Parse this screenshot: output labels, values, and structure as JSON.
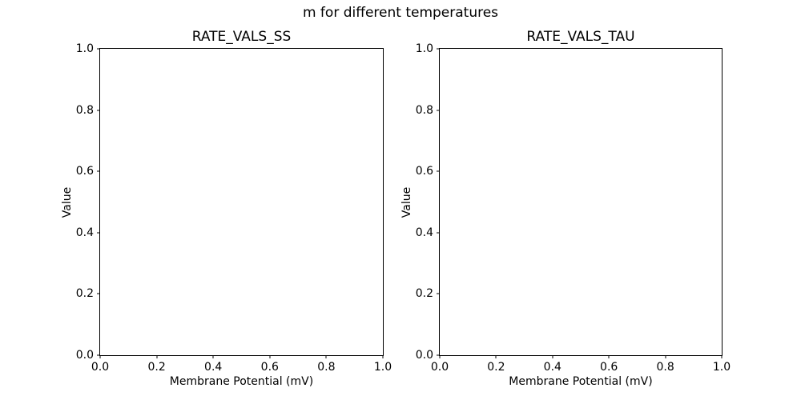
{
  "figure": {
    "suptitle": "m for different temperatures"
  },
  "colors": {
    "background": "#ffffff",
    "text": "#000000",
    "axis": "#000000"
  },
  "chart_data": [
    {
      "type": "line",
      "title": "RATE_VALS_SS",
      "xlabel": "Membrane Potential (mV)",
      "ylabel": "Value",
      "xlim": [
        0.0,
        1.0
      ],
      "ylim": [
        0.0,
        1.0
      ],
      "xticks": [
        "0.0",
        "0.2",
        "0.4",
        "0.6",
        "0.8",
        "1.0"
      ],
      "yticks": [
        "0.0",
        "0.2",
        "0.4",
        "0.6",
        "0.8",
        "1.0"
      ],
      "grid": false,
      "legend": false,
      "series": []
    },
    {
      "type": "line",
      "title": "RATE_VALS_TAU",
      "xlabel": "Membrane Potential (mV)",
      "ylabel": "Value",
      "xlim": [
        0.0,
        1.0
      ],
      "ylim": [
        0.0,
        1.0
      ],
      "xticks": [
        "0.0",
        "0.2",
        "0.4",
        "0.6",
        "0.8",
        "1.0"
      ],
      "yticks": [
        "0.0",
        "0.2",
        "0.4",
        "0.6",
        "0.8",
        "1.0"
      ],
      "grid": false,
      "legend": false,
      "series": []
    }
  ]
}
